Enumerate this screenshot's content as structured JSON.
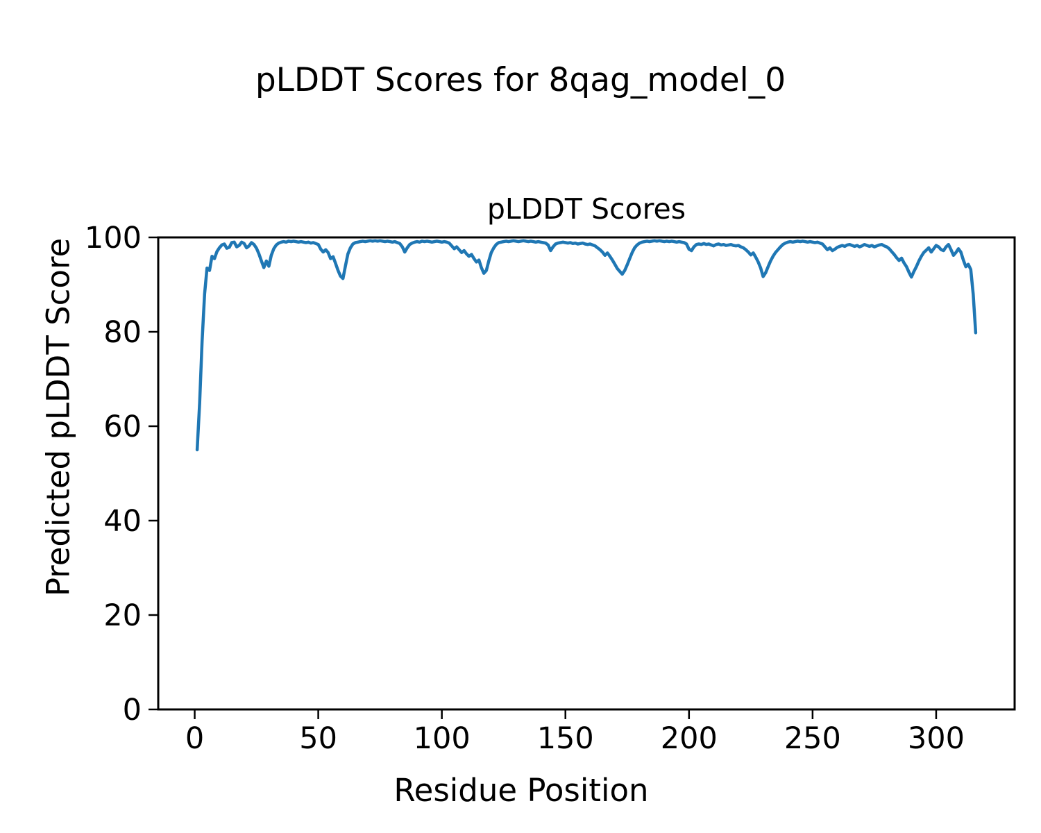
{
  "figure": {
    "suptitle": "pLDDT Scores for 8qag_model_0",
    "axes_title": "pLDDT Scores",
    "xlabel": "Residue Position",
    "ylabel": "Predicted pLDDT Score"
  },
  "chart_data": {
    "type": "line",
    "title": "pLDDT Scores",
    "suptitle": "pLDDT Scores for 8qag_model_0",
    "xlabel": "Residue Position",
    "ylabel": "Predicted pLDDT Score",
    "grid": false,
    "legend": "none",
    "line_color": "#1f77b4",
    "line_width": 4.5,
    "axis_color": "#000000",
    "background_color": "#ffffff",
    "xlim": [
      -14.75,
      331.75
    ],
    "ylim": [
      0,
      100
    ],
    "x_ticks": [
      0,
      50,
      100,
      150,
      200,
      250,
      300
    ],
    "y_ticks": [
      0,
      20,
      40,
      60,
      80,
      100
    ],
    "x_start": 1,
    "series": [
      {
        "name": "pLDDT",
        "values": [
          55.0,
          65.0,
          78.0,
          88.0,
          93.5,
          93.0,
          96.0,
          95.5,
          97.0,
          97.8,
          98.4,
          98.6,
          97.7,
          97.9,
          98.9,
          99.0,
          98.0,
          98.3,
          99.0,
          98.7,
          97.8,
          98.2,
          98.9,
          98.5,
          97.7,
          96.5,
          95.0,
          93.6,
          95.0,
          93.9,
          96.2,
          97.6,
          98.4,
          98.8,
          99.0,
          99.1,
          99.0,
          99.2,
          99.1,
          99.2,
          99.1,
          99.0,
          99.1,
          99.0,
          98.9,
          99.0,
          98.8,
          98.9,
          98.7,
          98.5,
          97.5,
          96.9,
          97.4,
          96.8,
          95.5,
          95.9,
          94.5,
          93.0,
          91.8,
          91.3,
          94.0,
          96.5,
          97.8,
          98.6,
          98.9,
          99.0,
          99.1,
          99.2,
          99.1,
          99.2,
          99.3,
          99.2,
          99.3,
          99.2,
          99.3,
          99.2,
          99.1,
          99.2,
          99.1,
          99.0,
          99.1,
          98.9,
          98.7,
          98.0,
          96.9,
          97.8,
          98.5,
          98.8,
          99.0,
          99.1,
          99.0,
          99.2,
          99.1,
          99.2,
          99.1,
          99.0,
          99.1,
          99.2,
          99.1,
          99.0,
          99.1,
          99.0,
          98.8,
          98.2,
          97.6,
          98.0,
          97.4,
          96.8,
          97.2,
          96.5,
          96.0,
          96.4,
          95.5,
          94.8,
          95.2,
          93.6,
          92.4,
          93.0,
          95.0,
          96.8,
          97.8,
          98.5,
          98.9,
          99.0,
          99.1,
          99.2,
          99.1,
          99.2,
          99.3,
          99.2,
          99.1,
          99.2,
          99.3,
          99.2,
          99.1,
          99.2,
          99.1,
          99.0,
          99.1,
          99.0,
          98.9,
          98.8,
          98.4,
          97.2,
          98.0,
          98.6,
          98.8,
          98.9,
          99.0,
          98.9,
          98.8,
          98.9,
          98.7,
          98.8,
          98.6,
          98.7,
          98.8,
          98.6,
          98.5,
          98.6,
          98.4,
          98.2,
          97.8,
          97.4,
          96.9,
          96.2,
          96.7,
          96.0,
          95.2,
          94.3,
          93.4,
          92.8,
          92.2,
          93.0,
          94.2,
          95.5,
          96.8,
          97.8,
          98.4,
          98.8,
          99.0,
          99.1,
          99.2,
          99.1,
          99.2,
          99.3,
          99.2,
          99.3,
          99.2,
          99.1,
          99.2,
          99.1,
          99.2,
          99.1,
          99.0,
          99.1,
          99.0,
          98.9,
          98.6,
          97.5,
          97.2,
          98.0,
          98.5,
          98.6,
          98.5,
          98.7,
          98.5,
          98.6,
          98.4,
          98.2,
          98.5,
          98.6,
          98.4,
          98.5,
          98.3,
          98.4,
          98.5,
          98.3,
          98.2,
          98.3,
          98.0,
          97.8,
          97.4,
          96.9,
          96.3,
          96.7,
          95.8,
          94.8,
          93.5,
          91.7,
          92.5,
          93.8,
          95.0,
          96.0,
          96.8,
          97.4,
          98.0,
          98.5,
          98.8,
          99.0,
          99.1,
          99.0,
          99.1,
          99.2,
          99.1,
          99.2,
          99.1,
          99.0,
          99.1,
          99.0,
          98.9,
          99.0,
          98.8,
          98.6,
          98.0,
          97.4,
          97.8,
          97.2,
          97.5,
          97.9,
          98.1,
          98.3,
          98.1,
          98.4,
          98.5,
          98.3,
          98.1,
          98.3,
          98.0,
          98.2,
          98.5,
          98.3,
          98.1,
          98.3,
          98.0,
          98.2,
          98.4,
          98.5,
          98.2,
          98.0,
          97.6,
          97.0,
          96.4,
          95.7,
          95.1,
          95.6,
          94.6,
          93.8,
          92.6,
          91.6,
          92.8,
          93.8,
          95.0,
          96.0,
          96.8,
          97.3,
          97.8,
          96.9,
          97.6,
          98.3,
          98.0,
          97.4,
          97.2,
          98.0,
          98.5,
          97.4,
          96.2,
          96.8,
          97.6,
          96.9,
          95.2,
          93.8,
          94.3,
          93.2,
          88.0,
          79.8
        ]
      }
    ]
  }
}
